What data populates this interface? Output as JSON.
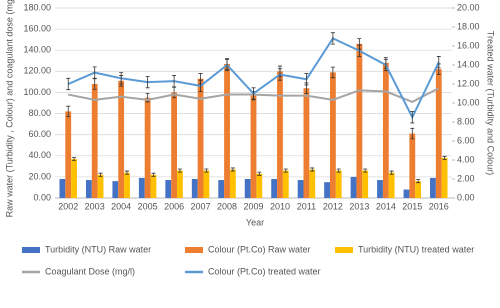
{
  "chart_data": {
    "type": "combo",
    "x_label": "Year",
    "y_label": "Raw water  (Turbidity , Colour) and coagulant dose (mg/L)",
    "y2_label": "Treated water (Turbidity and Colour)",
    "categories": [
      "2002",
      "2003",
      "2004",
      "2005",
      "2006",
      "2007",
      "2008",
      "2009",
      "2010",
      "2011",
      "2012",
      "2013",
      "2014",
      "2015",
      "2016"
    ],
    "ylim": [
      0,
      180
    ],
    "yticks": [
      {
        "value": 0,
        "label": "0.00"
      },
      {
        "value": 20,
        "label": "20.00"
      },
      {
        "value": 40,
        "label": "40.00"
      },
      {
        "value": 60,
        "label": "60.00"
      },
      {
        "value": 80,
        "label": "80.00"
      },
      {
        "value": 100,
        "label": "100.00"
      },
      {
        "value": 120,
        "label": "120.00"
      },
      {
        "value": 140,
        "label": "140.00"
      },
      {
        "value": 160,
        "label": "160.00"
      },
      {
        "value": 180,
        "label": "180.00"
      }
    ],
    "y2lim": [
      0,
      20
    ],
    "y2ticks": [
      {
        "value": 0,
        "label": "0.00"
      },
      {
        "value": 2,
        "label": "2.00"
      },
      {
        "value": 4,
        "label": "4.00"
      },
      {
        "value": 6,
        "label": "6.00"
      },
      {
        "value": 8,
        "label": "8.00"
      },
      {
        "value": 10,
        "label": "10.00"
      },
      {
        "value": 12,
        "label": "12.00"
      },
      {
        "value": 14,
        "label": "14.00"
      },
      {
        "value": 16,
        "label": "16.00"
      },
      {
        "value": 18,
        "label": "18.00"
      },
      {
        "value": 20,
        "label": "20.00"
      }
    ],
    "grid": true,
    "legend": "bottom",
    "series": [
      {
        "name": "Turbidity (NTU) Raw water",
        "type": "bar",
        "color": "#4472c4",
        "values": [
          18,
          17,
          16,
          19,
          17,
          18,
          17,
          18,
          18,
          17,
          15,
          20,
          17,
          8,
          19
        ]
      },
      {
        "name": "Colour (Pt.Co) Raw water",
        "type": "bar",
        "color": "#ed7d31",
        "values": [
          82,
          108,
          111,
          95,
          100,
          113,
          127,
          97,
          120,
          104,
          119,
          146,
          128,
          61,
          122
        ],
        "errors": [
          5,
          5,
          5,
          4,
          5,
          5,
          5,
          4,
          5,
          5,
          5,
          5,
          5,
          5,
          5
        ]
      },
      {
        "name": "Turbidity (NTU) treated water",
        "type": "bar",
        "color": "#ffc000",
        "values": [
          37,
          22,
          24,
          22,
          26,
          26,
          27,
          23,
          26,
          27,
          26,
          26,
          24,
          16,
          38
        ],
        "errors": [
          1.5,
          1.5,
          1.5,
          1.5,
          1.5,
          1.5,
          1.5,
          1.5,
          1.5,
          1.5,
          1.5,
          1.5,
          1.5,
          1.5,
          1.5
        ]
      },
      {
        "name": "Coagulant Dose (mg/l)",
        "type": "line",
        "color": "#a5a5a5",
        "values": [
          98,
          93,
          96,
          93,
          98,
          94,
          98,
          98,
          97,
          97,
          93,
          102,
          101,
          91,
          104
        ]
      },
      {
        "name": "Colour (Pt.Co) treated water",
        "type": "line",
        "axis": "y2",
        "color": "#5b9bd5",
        "values": [
          12.0,
          13.2,
          12.6,
          12.2,
          12.3,
          11.8,
          14.0,
          11.0,
          13.0,
          12.5,
          16.8,
          15.5,
          14.0,
          8.5,
          14.3
        ],
        "errors": [
          0.6,
          0.6,
          0.6,
          0.6,
          0.6,
          0.6,
          0.6,
          0.6,
          0.6,
          0.6,
          0.6,
          0.6,
          0.6,
          0.6,
          0.6
        ]
      }
    ]
  }
}
